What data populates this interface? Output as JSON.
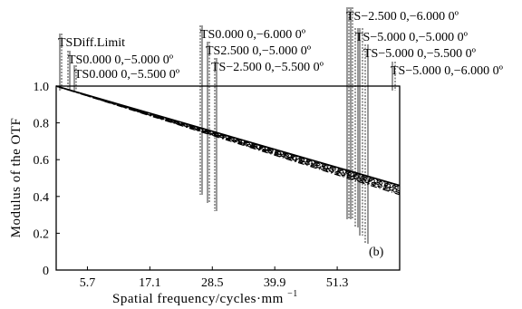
{
  "chart_data": {
    "type": "line",
    "panel_label": "(b)",
    "xlabel": "Spatial frequency/cycles·mm",
    "xlabel_superscript": "−1",
    "ylabel": "Modulus of the OTF",
    "xlim": [
      0,
      62.7
    ],
    "ylim": [
      0,
      1.0
    ],
    "x_ticks": [
      5.7,
      17.1,
      28.5,
      39.9,
      51.3
    ],
    "x_tick_labels": [
      "5.7",
      "17.1",
      "28.5",
      "39.9",
      "51.3"
    ],
    "y_ticks": [
      0,
      0.2,
      0.4,
      0.6,
      0.8,
      1.0
    ],
    "y_tick_labels": [
      "0",
      "0.2",
      "0.4",
      "0.6",
      "0.8",
      "1.0"
    ],
    "legend": [
      "TSDiff.Limit",
      "TS0.000 0,−5.000 0º",
      "TS0.000 0,−5.500 0º",
      "TS0.000 0,−6.000 0º",
      "TS2.500 0,−5.000 0º",
      "TS−2.500 0,−5.500 0º",
      "TS−2.500 0,−6.000 0º",
      "TS−5.000 0,−5.000 0º",
      "TS−5.000 0,−5.000 0º",
      "TS−5.000 0,−5.500 0º",
      "TS−5.000 0,−6.000 0º"
    ],
    "series": [
      {
        "name": "TSDiff.Limit",
        "x": [
          0,
          62.7
        ],
        "y": [
          1.0,
          0.46
        ]
      },
      {
        "name": "TS0.000 0,−5.000 0º",
        "x": [
          0,
          62.7
        ],
        "y": [
          1.0,
          0.455
        ]
      },
      {
        "name": "TS0.000 0,−5.500 0º",
        "x": [
          0,
          62.7
        ],
        "y": [
          1.0,
          0.45
        ]
      },
      {
        "name": "TS0.000 0,−6.000 0º",
        "x": [
          0,
          62.7
        ],
        "y": [
          1.0,
          0.445
        ]
      },
      {
        "name": "TS2.500 0,−5.000 0º",
        "x": [
          0,
          62.7
        ],
        "y": [
          1.0,
          0.44
        ]
      },
      {
        "name": "TS−2.500 0,−5.500 0º",
        "x": [
          0,
          62.7
        ],
        "y": [
          1.0,
          0.435
        ]
      },
      {
        "name": "TS−2.500 0,−6.000 0º",
        "x": [
          0,
          62.7
        ],
        "y": [
          1.0,
          0.43
        ]
      },
      {
        "name": "TS−5.000 0,−5.000 0º",
        "x": [
          0,
          62.7
        ],
        "y": [
          1.0,
          0.425
        ]
      },
      {
        "name": "TS−5.000 0,−5.000 0º",
        "x": [
          0,
          62.7
        ],
        "y": [
          1.0,
          0.42
        ]
      },
      {
        "name": "TS−5.000 0,−5.500 0º",
        "x": [
          0,
          62.7
        ],
        "y": [
          1.0,
          0.415
        ]
      },
      {
        "name": "TS−5.000 0,−6.000 0º",
        "x": [
          0,
          62.7
        ],
        "y": [
          1.0,
          0.41
        ]
      }
    ],
    "grid": false,
    "legend_placement": "top, staggered above plot"
  }
}
